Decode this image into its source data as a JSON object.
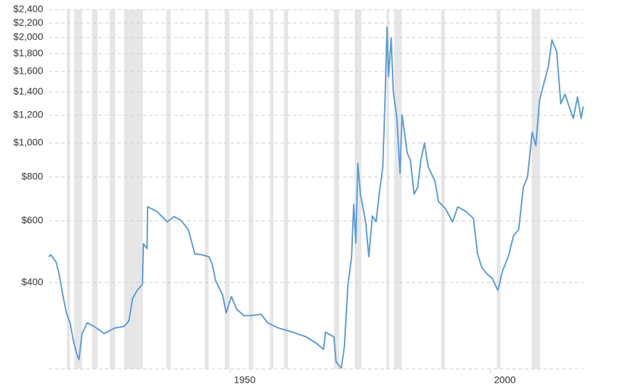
{
  "chart_data": {
    "type": "line",
    "x": [
      1915.1,
      1915.5,
      1916.5,
      1917.1,
      1917.8,
      1918.5,
      1919.2,
      1919.8,
      1920.5,
      1920.9,
      1921.5,
      1922.5,
      1923.8,
      1925.8,
      1927.8,
      1929.6,
      1930.5,
      1931.2,
      1932.1,
      1933.1,
      1933.3,
      1934.0,
      1934.1,
      1935.9,
      1937.9,
      1939.2,
      1940.5,
      1941.9,
      1943.2,
      1944.5,
      1945.9,
      1946.5,
      1947.2,
      1948.5,
      1949.2,
      1950.2,
      1951.2,
      1952.6,
      1953.9,
      1955.9,
      1957.2,
      1959.2,
      1961.9,
      1964.6,
      1966.6,
      1967.9,
      1968.3,
      1969.9,
      1970.3,
      1971.3,
      1971.9,
      1972.6,
      1973.3,
      1973.7,
      1974.1,
      1974.5,
      1975.0,
      1976.0,
      1976.6,
      1977.3,
      1978.0,
      1978.6,
      1979.3,
      1979.7,
      1980.1,
      1980.4,
      1980.9,
      1981.3,
      1982.0,
      1982.6,
      1983.0,
      1984.0,
      1984.6,
      1985.3,
      1986.0,
      1986.6,
      1987.3,
      1988.0,
      1989.3,
      1990.0,
      1991.3,
      1992.7,
      1993.7,
      1995.3,
      1996.7,
      1997.5,
      1998.3,
      1999.4,
      2000.3,
      2001.4,
      2002.3,
      2003.4,
      2004.4,
      2005.4,
      2006.3,
      2007.1,
      2008.0,
      2008.7,
      2009.4,
      2010.0,
      2011.1,
      2011.8,
      2012.7,
      2013.5,
      2014.3,
      2015.1,
      2015.9,
      2016.7,
      2017.4,
      2017.8
    ],
    "values": [
      474,
      480,
      458,
      422,
      369,
      328,
      307,
      275,
      250,
      241,
      286,
      307,
      300,
      286,
      297,
      300,
      311,
      360,
      380,
      395,
      516,
      500,
      658,
      638,
      596,
      617,
      602,
      567,
      483,
      480,
      474,
      452,
      404,
      369,
      328,
      365,
      336,
      322,
      322,
      325,
      307,
      297,
      289,
      280,
      268,
      258,
      289,
      280,
      238,
      228,
      262,
      395,
      474,
      668,
      519,
      875,
      715,
      596,
      474,
      620,
      596,
      715,
      856,
      1294,
      2140,
      1547,
      1995,
      1409,
      1176,
      819,
      1203,
      935,
      894,
      715,
      748,
      894,
      1000,
      856,
      780,
      681,
      651,
      596,
      658,
      638,
      610,
      483,
      442,
      422,
      412,
      380,
      432,
      474,
      543,
      567,
      748,
      800,
      1075,
      983,
      1320,
      1434,
      1654,
      1971,
      1823,
      1294,
      1379,
      1271,
      1176,
      1354,
      1176,
      1271
    ],
    "color": "#5b9bd5",
    "xlim": [
      1915.1,
      2017.8
    ],
    "xticks": [
      1950,
      2000
    ],
    "ylim": [
      227,
      2400
    ],
    "log_scale": true,
    "grid": true,
    "yticks": [
      {
        "value": 400,
        "label": "$400"
      },
      {
        "value": 600,
        "label": "$600"
      },
      {
        "value": 800,
        "label": "$800"
      },
      {
        "value": 1000,
        "label": "$1,000"
      },
      {
        "value": 1200,
        "label": "$1,200"
      },
      {
        "value": 1400,
        "label": "$1,400"
      },
      {
        "value": 1600,
        "label": "$1,600"
      },
      {
        "value": 1800,
        "label": "$1,800"
      },
      {
        "value": 2000,
        "label": "$2,000"
      },
      {
        "value": 2200,
        "label": "$2,200"
      },
      {
        "value": 2400,
        "label": "$2,400"
      }
    ],
    "recession_color": "#e6e6e6",
    "recessions": [
      [
        1918.6,
        1919.2
      ],
      [
        1920.0,
        1921.5
      ],
      [
        1923.4,
        1924.5
      ],
      [
        1926.8,
        1927.9
      ],
      [
        1929.6,
        1933.2
      ],
      [
        1937.7,
        1938.5
      ],
      [
        1945.1,
        1945.8
      ],
      [
        1948.9,
        1949.8
      ],
      [
        1953.5,
        1954.4
      ],
      [
        1957.6,
        1958.3
      ],
      [
        1960.3,
        1961.1
      ],
      [
        1969.9,
        1970.9
      ],
      [
        1973.9,
        1975.2
      ],
      [
        1980.0,
        1980.5
      ],
      [
        1981.5,
        1982.9
      ],
      [
        1990.5,
        1991.2
      ],
      [
        2001.2,
        2001.9
      ],
      [
        2007.9,
        2009.5
      ]
    ]
  }
}
